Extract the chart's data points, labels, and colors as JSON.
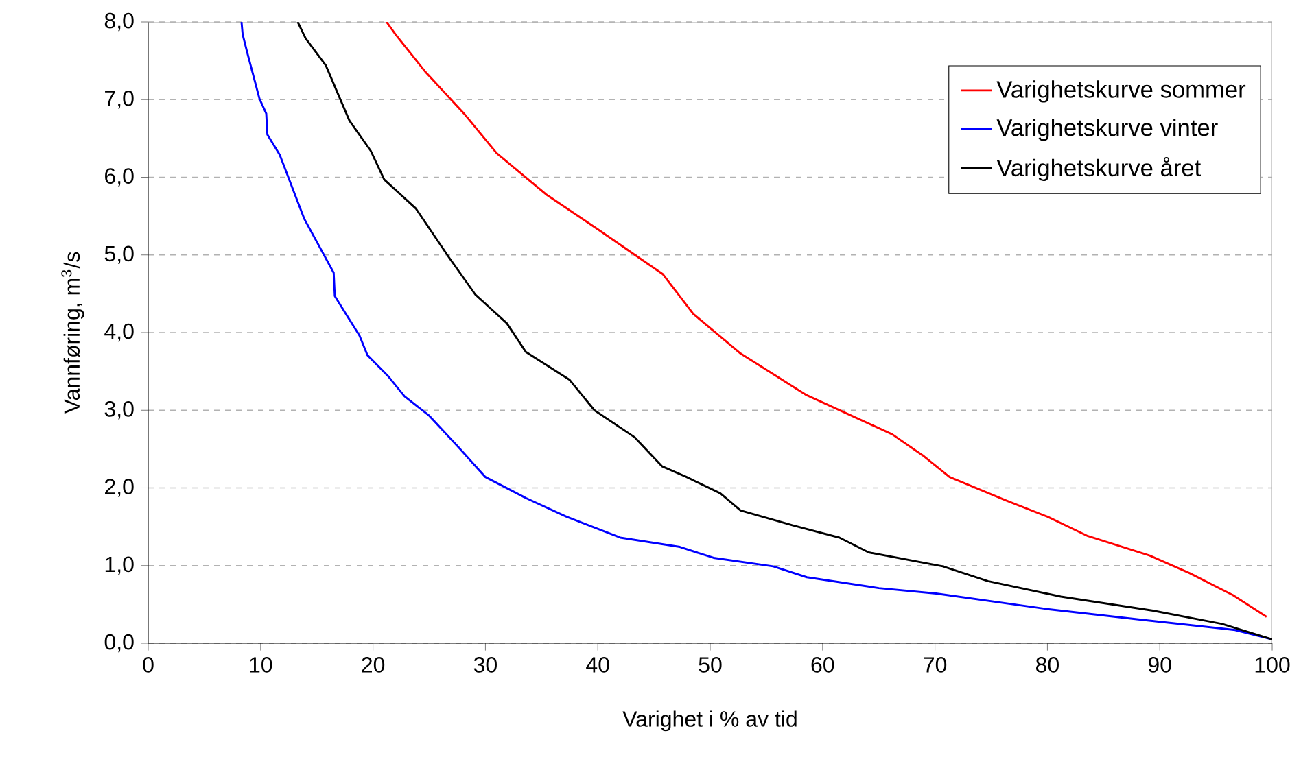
{
  "chart_data": {
    "type": "line",
    "xlabel": "Varighet i % av tid",
    "ylabel": "Vannføring, m$^{3}$/s",
    "xlim": [
      0,
      100
    ],
    "ylim": [
      0,
      8
    ],
    "xticks": [
      0,
      10,
      20,
      30,
      40,
      50,
      60,
      70,
      80,
      90,
      100
    ],
    "yticks": [
      {
        "value": 0,
        "label": "0,0"
      },
      {
        "value": 1,
        "label": "1,0"
      },
      {
        "value": 2,
        "label": "2,0"
      },
      {
        "value": 3,
        "label": "3,0"
      },
      {
        "value": 4,
        "label": "4,0"
      },
      {
        "value": 5,
        "label": "5,0"
      },
      {
        "value": 6,
        "label": "6,0"
      },
      {
        "value": 7,
        "label": "7,0"
      },
      {
        "value": 8,
        "label": "8,0"
      }
    ],
    "grid": "y",
    "legend": "top right",
    "marker": "none",
    "line_style": "solid",
    "series": [
      {
        "name": "Varighetskurve sommer",
        "color": "#ff0000",
        "x": [
          21.2,
          22.0,
          24.7,
          28.1,
          31.0,
          35.4,
          39.9,
          45.8,
          48.5,
          52.7,
          58.5,
          66.2,
          68.9,
          71.3,
          76.3,
          80.0,
          83.6,
          89.1,
          92.7,
          96.5,
          99.5
        ],
        "values": [
          8.0,
          7.84,
          7.35,
          6.82,
          6.31,
          5.78,
          5.34,
          4.75,
          4.24,
          3.73,
          3.2,
          2.69,
          2.42,
          2.14,
          1.84,
          1.63,
          1.38,
          1.13,
          0.9,
          0.62,
          0.34
        ]
      },
      {
        "name": "Varighetskurve vinter",
        "color": "#0000ff",
        "x": [
          8.3,
          8.4,
          8.8,
          9.9,
          10.5,
          10.6,
          11.7,
          13.1,
          13.9,
          16.5,
          16.6,
          18.8,
          19.5,
          21.4,
          22.8,
          25.0,
          27.5,
          30.0,
          33.6,
          37.2,
          42.0,
          47.3,
          50.3,
          55.6,
          58.6,
          65.0,
          70.1,
          80.0,
          88.5,
          96.7,
          100
        ],
        "values": [
          8.0,
          7.84,
          7.61,
          7.01,
          6.82,
          6.55,
          6.29,
          5.76,
          5.46,
          4.77,
          4.47,
          3.96,
          3.71,
          3.43,
          3.18,
          2.93,
          2.54,
          2.14,
          1.87,
          1.63,
          1.36,
          1.24,
          1.1,
          0.99,
          0.85,
          0.71,
          0.64,
          0.44,
          0.3,
          0.17,
          0.05
        ]
      },
      {
        "name": "Varighetskurve året",
        "color": "#000000",
        "x": [
          13.3,
          14.0,
          15.8,
          17.9,
          19.8,
          21.0,
          23.8,
          26.7,
          29.1,
          31.9,
          33.6,
          37.5,
          39.7,
          43.3,
          45.7,
          47.9,
          50.9,
          52.7,
          57.3,
          61.5,
          64.1,
          70.7,
          74.7,
          81.2,
          89.4,
          95.5,
          100
        ],
        "values": [
          8.0,
          7.79,
          7.44,
          6.73,
          6.34,
          5.97,
          5.6,
          4.98,
          4.49,
          4.12,
          3.75,
          3.39,
          3.0,
          2.65,
          2.28,
          2.14,
          1.93,
          1.71,
          1.52,
          1.36,
          1.17,
          0.99,
          0.8,
          0.6,
          0.42,
          0.25,
          0.05
        ]
      }
    ]
  }
}
